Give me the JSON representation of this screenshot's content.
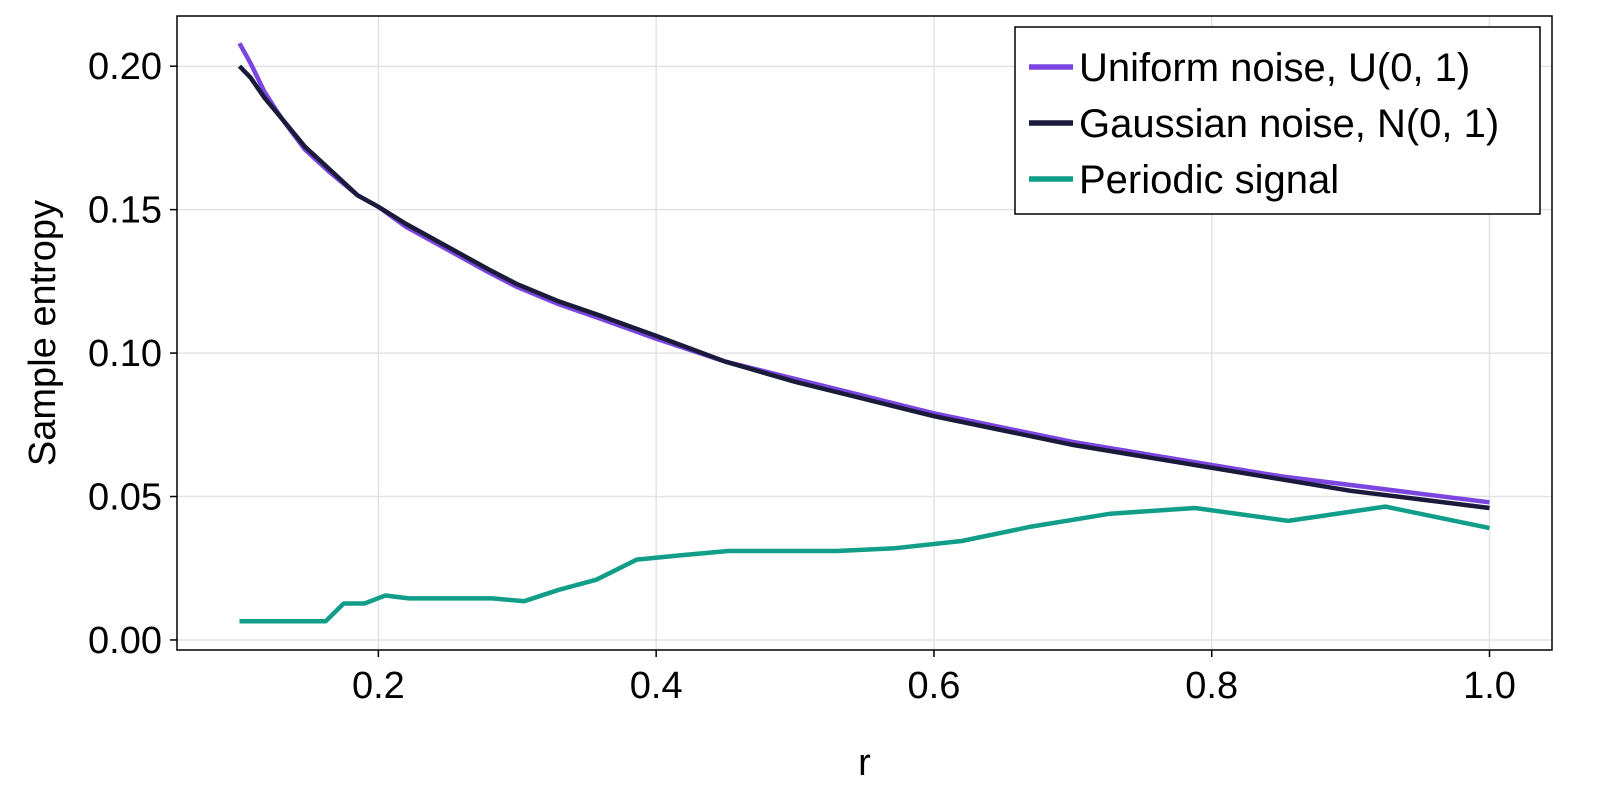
{
  "chart_data": {
    "type": "line",
    "title": "",
    "xlabel": "r",
    "ylabel": "Sample entropy",
    "xlim": [
      0.055,
      1.045
    ],
    "ylim": [
      -0.0035,
      0.2175
    ],
    "xticks": [
      0.2,
      0.4,
      0.6,
      0.8,
      1.0
    ],
    "xtick_labels": [
      "0.2",
      "0.4",
      "0.6",
      "0.8",
      "1.0"
    ],
    "yticks": [
      0.0,
      0.05,
      0.1,
      0.15,
      0.2
    ],
    "ytick_labels": [
      "0.00",
      "0.05",
      "0.10",
      "0.15",
      "0.20"
    ],
    "grid": true,
    "legend_position": "top-right",
    "series": [
      {
        "name": "Uniform noise, U(0, 1)",
        "color": "#7b45e0",
        "x": [
          0.1,
          0.108,
          0.118,
          0.13,
          0.147,
          0.165,
          0.185,
          0.2,
          0.22,
          0.25,
          0.28,
          0.3,
          0.33,
          0.36,
          0.4,
          0.45,
          0.5,
          0.55,
          0.6,
          0.65,
          0.7,
          0.75,
          0.8,
          0.85,
          0.9,
          0.95,
          1.0
        ],
        "y": [
          0.208,
          0.201,
          0.191,
          0.182,
          0.171,
          0.163,
          0.155,
          0.151,
          0.144,
          0.136,
          0.128,
          0.123,
          0.117,
          0.112,
          0.105,
          0.097,
          0.091,
          0.085,
          0.079,
          0.074,
          0.069,
          0.065,
          0.061,
          0.057,
          0.054,
          0.051,
          0.048
        ]
      },
      {
        "name": "Gaussian noise, N(0, 1)",
        "color": "#1a1a3a",
        "x": [
          0.1,
          0.108,
          0.118,
          0.13,
          0.147,
          0.165,
          0.185,
          0.2,
          0.22,
          0.25,
          0.28,
          0.3,
          0.33,
          0.36,
          0.4,
          0.45,
          0.5,
          0.55,
          0.6,
          0.65,
          0.7,
          0.75,
          0.8,
          0.85,
          0.9,
          0.95,
          1.0
        ],
        "y": [
          0.2,
          0.196,
          0.189,
          0.182,
          0.172,
          0.164,
          0.155,
          0.151,
          0.145,
          0.137,
          0.129,
          0.124,
          0.118,
          0.113,
          0.106,
          0.097,
          0.09,
          0.084,
          0.078,
          0.073,
          0.068,
          0.064,
          0.06,
          0.056,
          0.052,
          0.049,
          0.046
        ]
      },
      {
        "name": "Periodic signal",
        "color": "#109e88",
        "x": [
          0.1,
          0.11,
          0.12,
          0.13,
          0.14,
          0.15,
          0.162,
          0.175,
          0.19,
          0.205,
          0.222,
          0.24,
          0.26,
          0.282,
          0.305,
          0.33,
          0.357,
          0.386,
          0.418,
          0.452,
          0.49,
          0.53,
          0.572,
          0.62,
          0.67,
          0.727,
          0.788,
          0.855,
          0.925,
          1.0
        ],
        "y": [
          0.0065,
          0.0065,
          0.0065,
          0.0065,
          0.0065,
          0.0065,
          0.0065,
          0.0127,
          0.0127,
          0.0155,
          0.0145,
          0.0145,
          0.0145,
          0.0145,
          0.0135,
          0.0175,
          0.021,
          0.028,
          0.0295,
          0.031,
          0.031,
          0.031,
          0.032,
          0.0345,
          0.0395,
          0.044,
          0.046,
          0.0415,
          0.0465,
          0.039
        ]
      }
    ]
  }
}
